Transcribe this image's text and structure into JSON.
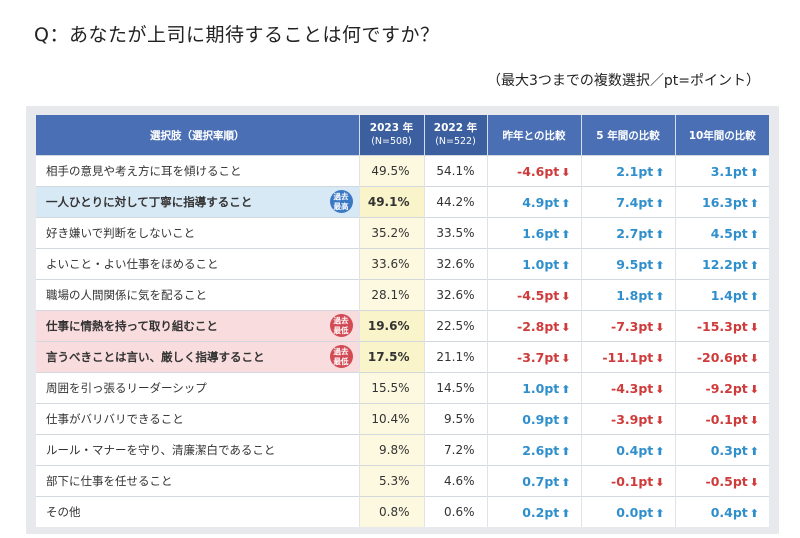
{
  "question": "Q：あなたが上司に期待することは何ですか？",
  "note": "（最大3つまでの複数選択／pt=ポイント）",
  "colors": {
    "up": "#2f8fcc",
    "down": "#cf3a3a",
    "header": "#4a6fb5"
  },
  "header": {
    "item": "選択肢（選択率順）",
    "y2023": "2023 年",
    "n2023": "(N=508)",
    "y2022": "2022 年",
    "n2022": "(N=522)",
    "vs_last_year": "昨年との比較",
    "vs_5y": "5 年間の比較",
    "vs_10y": "10年間の比較"
  },
  "badges": {
    "high_line1": "過去",
    "high_line2": "最高",
    "low_line1": "過去",
    "low_line2": "最低"
  },
  "rows": [
    {
      "item": "相手の意見や考え方に耳を傾けること",
      "v2023": "49.5%",
      "v2022": "54.1%",
      "yoy": "-4.6pt",
      "yoy_dir": "down",
      "y5": "2.1pt",
      "y5_dir": "up",
      "y10": "3.1pt",
      "y10_dir": "up"
    },
    {
      "item": "一人ひとりに対して丁寧に指導すること",
      "v2023": "49.1%",
      "v2022": "44.2%",
      "yoy": "4.9pt",
      "yoy_dir": "up",
      "y5": "7.4pt",
      "y5_dir": "up",
      "y10": "16.3pt",
      "y10_dir": "up"
    },
    {
      "item": "好き嫌いで判断をしないこと",
      "v2023": "35.2%",
      "v2022": "33.5%",
      "yoy": "1.6pt",
      "yoy_dir": "up",
      "y5": "2.7pt",
      "y5_dir": "up",
      "y10": "4.5pt",
      "y10_dir": "up"
    },
    {
      "item": "よいこと・よい仕事をほめること",
      "v2023": "33.6%",
      "v2022": "32.6%",
      "yoy": "1.0pt",
      "yoy_dir": "up",
      "y5": "9.5pt",
      "y5_dir": "up",
      "y10": "12.2pt",
      "y10_dir": "up"
    },
    {
      "item": "職場の人間関係に気を配ること",
      "v2023": "28.1%",
      "v2022": "32.6%",
      "yoy": "-4.5pt",
      "yoy_dir": "down",
      "y5": "1.8pt",
      "y5_dir": "up",
      "y10": "1.4pt",
      "y10_dir": "up"
    },
    {
      "item": "仕事に情熱を持って取り組むこと",
      "v2023": "19.6%",
      "v2022": "22.5%",
      "yoy": "-2.8pt",
      "yoy_dir": "down",
      "y5": "-7.3pt",
      "y5_dir": "down",
      "y10": "-15.3pt",
      "y10_dir": "down"
    },
    {
      "item": "言うべきことは言い、厳しく指導すること",
      "v2023": "17.5%",
      "v2022": "21.1%",
      "yoy": "-3.7pt",
      "yoy_dir": "down",
      "y5": "-11.1pt",
      "y5_dir": "down",
      "y10": "-20.6pt",
      "y10_dir": "down"
    },
    {
      "item": "周囲を引っ張るリーダーシップ",
      "v2023": "15.5%",
      "v2022": "14.5%",
      "yoy": "1.0pt",
      "yoy_dir": "up",
      "y5": "-4.3pt",
      "y5_dir": "down",
      "y10": "-9.2pt",
      "y10_dir": "down"
    },
    {
      "item": "仕事がバリバリできること",
      "v2023": "10.4%",
      "v2022": "9.5%",
      "yoy": "0.9pt",
      "yoy_dir": "up",
      "y5": "-3.9pt",
      "y5_dir": "down",
      "y10": "-0.1pt",
      "y10_dir": "down"
    },
    {
      "item": "ルール・マナーを守り、清廉潔白であること",
      "v2023": "9.8%",
      "v2022": "7.2%",
      "yoy": "2.6pt",
      "yoy_dir": "up",
      "y5": "0.4pt",
      "y5_dir": "up",
      "y10": "0.3pt",
      "y10_dir": "up"
    },
    {
      "item": "部下に仕事を任せること",
      "v2023": "5.3%",
      "v2022": "4.6%",
      "yoy": "0.7pt",
      "yoy_dir": "up",
      "y5": "-0.1pt",
      "y5_dir": "down",
      "y10": "-0.5pt",
      "y10_dir": "down"
    },
    {
      "item": "その他",
      "v2023": "0.8%",
      "v2022": "0.6%",
      "yoy": "0.2pt",
      "yoy_dir": "up",
      "y5": "0.0pt",
      "y5_dir": "up",
      "y10": "0.4pt",
      "y10_dir": "up"
    }
  ]
}
